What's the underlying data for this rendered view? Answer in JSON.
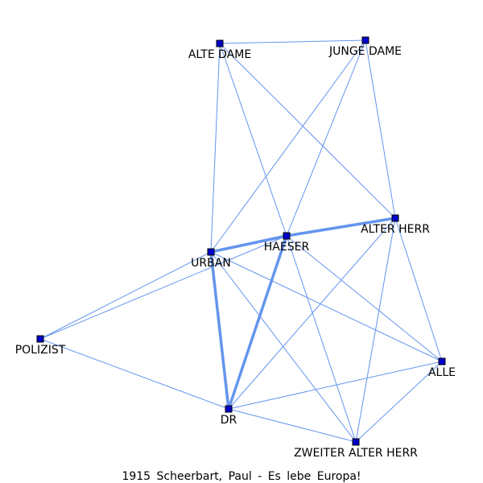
{
  "graph": {
    "caption": "1915 Scheerbart, Paul - Es lebe Europa!",
    "edge_color": "#6495ED",
    "node_color": "#0000CC",
    "nodes": [
      {
        "id": "alte_dame",
        "label": "ALTE DAME"
      },
      {
        "id": "junge_dame",
        "label": "JUNGE DAME"
      },
      {
        "id": "alter_herr",
        "label": "ALTER HERR"
      },
      {
        "id": "haeser",
        "label": "HAESER"
      },
      {
        "id": "urban",
        "label": "URBAN"
      },
      {
        "id": "polizist",
        "label": "POLIZIST"
      },
      {
        "id": "alle",
        "label": "ALLE"
      },
      {
        "id": "dr",
        "label": "DR"
      },
      {
        "id": "zweiter_alter_herr",
        "label": "ZWEITER ALTER HERR"
      }
    ],
    "edges": [
      {
        "from": "alte_dame",
        "to": "junge_dame",
        "weight": 1
      },
      {
        "from": "alte_dame",
        "to": "urban",
        "weight": 1
      },
      {
        "from": "alte_dame",
        "to": "haeser",
        "weight": 1
      },
      {
        "from": "alte_dame",
        "to": "alter_herr",
        "weight": 1
      },
      {
        "from": "junge_dame",
        "to": "urban",
        "weight": 1
      },
      {
        "from": "junge_dame",
        "to": "haeser",
        "weight": 1
      },
      {
        "from": "junge_dame",
        "to": "alter_herr",
        "weight": 1
      },
      {
        "from": "urban",
        "to": "haeser",
        "weight": 3
      },
      {
        "from": "haeser",
        "to": "alter_herr",
        "weight": 3
      },
      {
        "from": "urban",
        "to": "dr",
        "weight": 3
      },
      {
        "from": "haeser",
        "to": "dr",
        "weight": 3
      },
      {
        "from": "urban",
        "to": "polizist",
        "weight": 1
      },
      {
        "from": "haeser",
        "to": "polizist",
        "weight": 1
      },
      {
        "from": "polizist",
        "to": "dr",
        "weight": 1
      },
      {
        "from": "urban",
        "to": "alle",
        "weight": 1
      },
      {
        "from": "urban",
        "to": "zweiter_alter_herr",
        "weight": 1
      },
      {
        "from": "haeser",
        "to": "alle",
        "weight": 1
      },
      {
        "from": "haeser",
        "to": "zweiter_alter_herr",
        "weight": 1
      },
      {
        "from": "alter_herr",
        "to": "alle",
        "weight": 1
      },
      {
        "from": "alter_herr",
        "to": "zweiter_alter_herr",
        "weight": 1
      },
      {
        "from": "alter_herr",
        "to": "dr",
        "weight": 1
      },
      {
        "from": "dr",
        "to": "alle",
        "weight": 1
      },
      {
        "from": "dr",
        "to": "zweiter_alter_herr",
        "weight": 1
      },
      {
        "from": "alle",
        "to": "zweiter_alter_herr",
        "weight": 1
      }
    ]
  }
}
